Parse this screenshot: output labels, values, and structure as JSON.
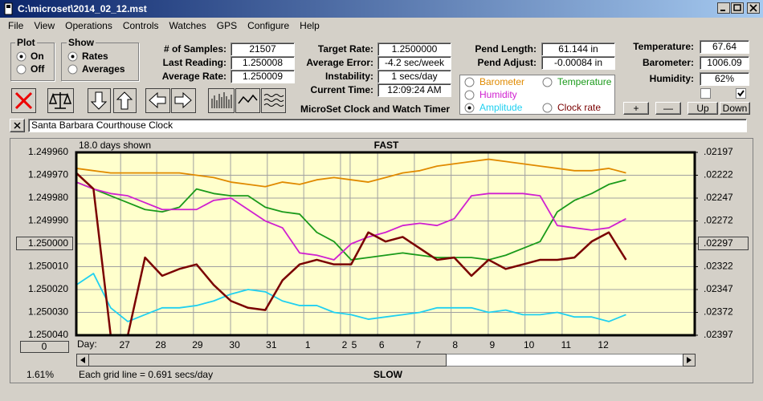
{
  "title_bar": "C:\\microset\\2014_02_12.mst",
  "menu": [
    "File",
    "View",
    "Operations",
    "Controls",
    "Watches",
    "GPS",
    "Configure",
    "Help"
  ],
  "plot_group": {
    "title": "Plot",
    "options": [
      "On",
      "Off"
    ],
    "selected": 0
  },
  "show_group": {
    "title": "Show",
    "options": [
      "Rates",
      "Averages"
    ],
    "selected": 0
  },
  "sample_fields": [
    {
      "label": "# of Samples:",
      "value": "21507"
    },
    {
      "label": "Last Reading:",
      "value": "1.250008"
    },
    {
      "label": "Average Rate:",
      "value": "1.250009"
    }
  ],
  "rate_fields": [
    {
      "label": "Target Rate:",
      "value": "1.2500000"
    },
    {
      "label": "Average Error:",
      "value": "-4.2 sec/week"
    },
    {
      "label": "Instability:",
      "value": "1 secs/day"
    },
    {
      "label": "Current Time:",
      "value": "12:09:24 AM"
    }
  ],
  "pend_fields": [
    {
      "label": "Pend Length:",
      "value": "61.144 in"
    },
    {
      "label": "Pend Adjust:",
      "value": "-0.00084 in"
    }
  ],
  "env_fields": [
    {
      "label": "Temperature:",
      "value": "67.64"
    },
    {
      "label": "Barometer:",
      "value": "1006.09"
    },
    {
      "label": "Humidity:",
      "value": "62%"
    }
  ],
  "checkboxes": [
    false,
    true
  ],
  "buttons": [
    "+",
    "—",
    "Up",
    "Down"
  ],
  "app_name": "MicroSet Clock and Watch Timer",
  "clock_name": "Santa Barbara Courthouse Clock",
  "selected_series": 3,
  "chart_data": {
    "type": "line",
    "days_shown": "18.0 days shown",
    "fast_label": "FAST",
    "slow_label": "SLOW",
    "day_label": "Day:",
    "grid_note": "Each grid line = 0.691 secs/day",
    "percent": "1.61%",
    "scale_button": "0",
    "y_reversed": true,
    "grid": true,
    "xlim": [
      0,
      18
    ],
    "xticks": [
      {
        "value": 1.29,
        "label": "27"
      },
      {
        "value": 2.34,
        "label": "28"
      },
      {
        "value": 3.41,
        "label": "29"
      },
      {
        "value": 4.49,
        "label": "30"
      },
      {
        "value": 5.56,
        "label": "31"
      },
      {
        "value": 6.62,
        "label": "1"
      },
      {
        "value": 7.69,
        "label": "2"
      },
      {
        "value": 7.97,
        "label": "5"
      },
      {
        "value": 8.77,
        "label": "6"
      },
      {
        "value": 9.84,
        "label": "7"
      },
      {
        "value": 10.91,
        "label": "8"
      },
      {
        "value": 11.99,
        "label": "9"
      },
      {
        "value": 13.06,
        "label": "10"
      },
      {
        "value": 14.14,
        "label": "11"
      },
      {
        "value": 15.22,
        "label": "12"
      }
    ],
    "ylim": [
      1.24996,
      1.25004
    ],
    "yticks": [
      {
        "value": 1.24996,
        "label": "1.249960"
      },
      {
        "value": 1.24997,
        "label": "1.249970"
      },
      {
        "value": 1.24998,
        "label": "1.249980"
      },
      {
        "value": 1.24999,
        "label": "1.249990"
      },
      {
        "value": 1.25,
        "label": "1.250000"
      },
      {
        "value": 1.25001,
        "label": "1.250010"
      },
      {
        "value": 1.25002,
        "label": "1.250020"
      },
      {
        "value": 1.25003,
        "label": "1.250030"
      },
      {
        "value": 1.25004,
        "label": "1.250040"
      }
    ],
    "y2lim": [
      0.02197,
      0.02397
    ],
    "y2ticks": [
      {
        "value": 0.02197,
        "label": ".02197"
      },
      {
        "value": 0.02222,
        "label": ".02222"
      },
      {
        "value": 0.02247,
        "label": ".02247"
      },
      {
        "value": 0.02272,
        "label": ".02272"
      },
      {
        "value": 0.02297,
        "label": ".02297"
      },
      {
        "value": 0.02322,
        "label": ".02322"
      },
      {
        "value": 0.02347,
        "label": ".02347"
      },
      {
        "value": 0.02372,
        "label": ".02372"
      },
      {
        "value": 0.02397,
        "label": ".02397"
      }
    ],
    "highlight_tick": 4,
    "x": [
      0,
      0.5,
      1,
      1.5,
      2,
      2.5,
      3,
      3.5,
      4,
      4.5,
      5,
      5.5,
      6,
      6.5,
      7,
      7.5,
      8,
      8.5,
      9,
      9.5,
      10,
      10.5,
      11,
      11.5,
      12,
      12.5,
      13,
      13.5,
      14,
      14.5,
      15,
      15.5,
      16
    ],
    "series": [
      {
        "name": "Barometer",
        "color": "#e08a00",
        "values": [
          1.249967,
          1.249968,
          1.249969,
          1.249969,
          1.249969,
          1.249969,
          1.249969,
          1.24997,
          1.249971,
          1.249973,
          1.249974,
          1.249975,
          1.249973,
          1.249974,
          1.249972,
          1.249971,
          1.249972,
          1.249973,
          1.249971,
          1.249969,
          1.249968,
          1.249966,
          1.249965,
          1.249964,
          1.249963,
          1.249964,
          1.249965,
          1.249966,
          1.249967,
          1.249968,
          1.249968,
          1.249967,
          1.249969
        ]
      },
      {
        "name": "Temperature",
        "color": "#1a9a1a",
        "values": [
          1.249973,
          1.249976,
          1.249979,
          1.249982,
          1.249985,
          1.249986,
          1.249984,
          1.249976,
          1.249978,
          1.249979,
          1.249979,
          1.249984,
          1.249986,
          1.249987,
          1.249995,
          1.249999,
          1.250007,
          1.250006,
          1.250005,
          1.250004,
          1.250005,
          1.250006,
          1.250006,
          1.250006,
          1.250007,
          1.250005,
          1.250002,
          1.249999,
          1.249986,
          1.249981,
          1.249978,
          1.249974,
          1.249972
        ]
      },
      {
        "name": "Humidity",
        "color": "#d020d0",
        "values": [
          1.249973,
          1.249976,
          1.249978,
          1.249979,
          1.249982,
          1.249985,
          1.249985,
          1.249985,
          1.249981,
          1.24998,
          1.249985,
          1.24999,
          1.249993,
          1.250004,
          1.250005,
          1.250007,
          1.25,
          1.249997,
          1.249995,
          1.249992,
          1.249991,
          1.249992,
          1.249989,
          1.249979,
          1.249978,
          1.249978,
          1.249978,
          1.249979,
          1.249992,
          1.249993,
          1.249994,
          1.249993,
          1.249989
        ]
      },
      {
        "name": "Amplitude",
        "color": "#20d0f0",
        "values": [
          1.250018,
          1.250013,
          1.250028,
          1.250034,
          1.250031,
          1.250028,
          1.250028,
          1.250027,
          1.250025,
          1.250022,
          1.25002,
          1.250021,
          1.250025,
          1.250027,
          1.250027,
          1.25003,
          1.250031,
          1.250033,
          1.250032,
          1.250031,
          1.25003,
          1.250028,
          1.250028,
          1.250028,
          1.25003,
          1.250029,
          1.250031,
          1.250031,
          1.25003,
          1.250032,
          1.250032,
          1.250034,
          1.250031
        ]
      },
      {
        "name": "Clock rate",
        "color": "#7a0000",
        "values": [
          1.249969,
          1.249976,
          1.25004,
          1.25004,
          1.250006,
          1.250014,
          1.250011,
          1.250009,
          1.250018,
          1.250025,
          1.250028,
          1.250029,
          1.250016,
          1.250009,
          1.250007,
          1.250009,
          1.250009,
          1.249995,
          1.249999,
          1.249997,
          1.250002,
          1.250007,
          1.250006,
          1.250014,
          1.250007,
          1.250011,
          1.250009,
          1.250007,
          1.250007,
          1.250006,
          1.249999,
          1.249995,
          1.250007
        ]
      }
    ]
  }
}
